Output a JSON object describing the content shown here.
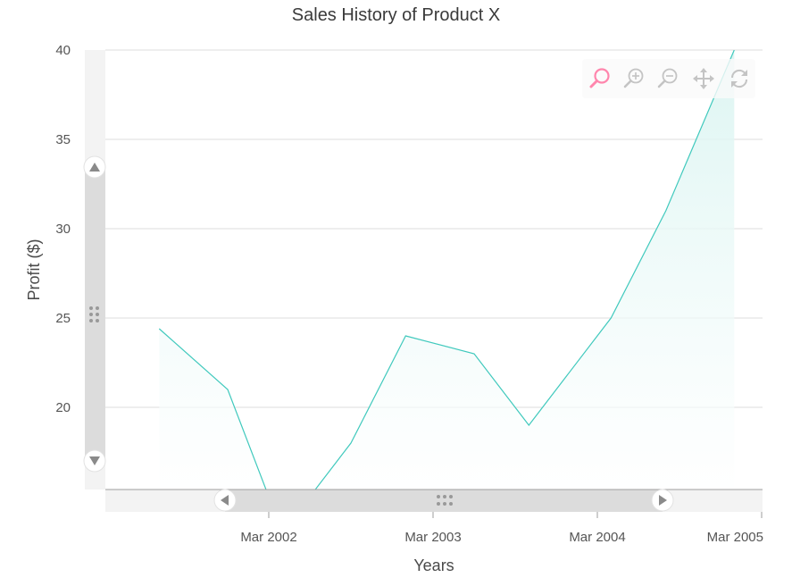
{
  "chart_data": {
    "type": "area",
    "title": "Sales History of Product X",
    "xlabel": "Years",
    "ylabel": "Profit ($)",
    "x": [
      "Jul 2001",
      "Dec 2001",
      "Mar 2002",
      "Jun 2002",
      "Sep 2002",
      "Jan 2003",
      "Jun 2003",
      "Oct 2003",
      "Apr 2004",
      "Aug 2004",
      "Jan 2005"
    ],
    "values": [
      24.4,
      21,
      15,
      15,
      18,
      24,
      23,
      19,
      25,
      31,
      40
    ],
    "x_tick_labels": [
      "Mar 2002",
      "Mar 2003",
      "Mar 2004",
      "Mar 2005"
    ],
    "y_ticks": [
      20,
      25,
      30,
      35,
      40
    ],
    "ylim": [
      15.4,
      40
    ],
    "grid": true,
    "series_color": "#40c9bd",
    "fill_color_top": "#d9f4f1"
  },
  "toolbar": {
    "tools": [
      {
        "name": "zoom-selection-icon",
        "color": "#ff4d8a"
      },
      {
        "name": "zoom-in-icon",
        "color": "#bdbdbd"
      },
      {
        "name": "zoom-out-icon",
        "color": "#bdbdbd"
      },
      {
        "name": "pan-icon",
        "color": "#bdbdbd"
      },
      {
        "name": "reset-icon",
        "color": "#bdbdbd"
      }
    ]
  }
}
